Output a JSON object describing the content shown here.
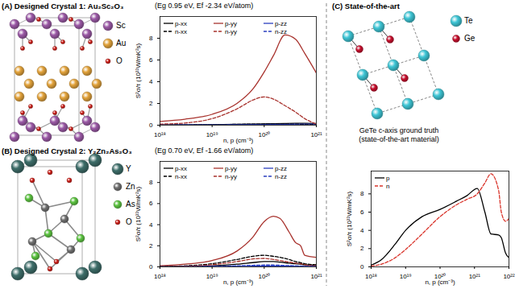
{
  "panels": [
    {
      "heading": "(A) Designed Crystal 1: Au₂Sc₂O₃",
      "atoms": [
        {
          "label": "Sc",
          "color": "#9b59a6"
        },
        {
          "label": "Au",
          "color": "#e3a33b"
        },
        {
          "label": "O",
          "color": "#d0201a"
        }
      ]
    },
    {
      "heading": "(B) Designed Crystal 2: Y₂Zn₂As₂O₃",
      "atoms": [
        {
          "label": "Y",
          "color": "#3e6e6a"
        },
        {
          "label": "Zn",
          "color": "#707070"
        },
        {
          "label": "As",
          "color": "#5cc440"
        },
        {
          "label": "O",
          "color": "#d0201a"
        }
      ]
    },
    {
      "heading": "(C) State-of-the-art",
      "atoms": [
        {
          "label": "Te",
          "color": "#3ec6d6"
        },
        {
          "label": "Ge",
          "color": "#c8102e"
        }
      ],
      "captions": [
        "GeTe c-axis ground truth",
        "(state-of-the-art material)"
      ]
    }
  ],
  "chart_data": [
    {
      "type": "line",
      "title": "(Eg 0.95 eV, Ef -2.34 eV/atom)",
      "x_label": "n, p (cm⁻³)",
      "y_label": "S²σ/τ (10¹¹W/mK²s)",
      "log": "x",
      "legend": "top-left",
      "x": [
        1e+18,
        3e+18,
        1e+19,
        3e+19,
        6e+19,
        1e+20,
        1.5e+20,
        2.5e+20,
        4e+20,
        6e+20,
        1e+21
      ],
      "series": [
        {
          "name": "p-xx",
          "color": "#000000",
          "line_style": "solid",
          "values": [
            0.02,
            0.03,
            0.05,
            0.08,
            0.1,
            0.12,
            0.14,
            0.16,
            0.17,
            0.17,
            0.16
          ]
        },
        {
          "name": "p-yy",
          "color": "#a8322d",
          "line_style": "solid",
          "values": [
            0.35,
            0.55,
            1.0,
            2.0,
            3.3,
            4.9,
            6.4,
            8.3,
            7.9,
            6.6,
            4.8
          ]
        },
        {
          "name": "p-zz",
          "color": "#2b3fbf",
          "line_style": "solid",
          "values": [
            0.01,
            0.02,
            0.03,
            0.05,
            0.06,
            0.07,
            0.08,
            0.09,
            0.1,
            0.1,
            0.1
          ]
        },
        {
          "name": "n-xx",
          "color": "#000000",
          "line_style": "dashed",
          "values": [
            0.02,
            0.03,
            0.05,
            0.08,
            0.1,
            0.11,
            0.12,
            0.12,
            0.1,
            0.08,
            0.05
          ]
        },
        {
          "name": "n-yy",
          "color": "#a8322d",
          "line_style": "dashed",
          "values": [
            0.1,
            0.2,
            0.6,
            1.5,
            2.3,
            2.6,
            2.4,
            1.8,
            1.2,
            0.6,
            0.1
          ]
        },
        {
          "name": "n-zz",
          "color": "#2b3fbf",
          "line_style": "dashed",
          "values": [
            0.01,
            0.02,
            0.03,
            0.04,
            0.05,
            0.05,
            0.05,
            0.05,
            0.04,
            0.03,
            0.02
          ]
        }
      ],
      "xlim": [
        1e+18,
        1e+21
      ],
      "xticks": [
        {
          "value": 1e+18,
          "label": "10¹⁸"
        },
        {
          "value": 1e+19,
          "label": "10¹⁹"
        },
        {
          "value": 1e+20,
          "label": "10²⁰"
        },
        {
          "value": 1e+21,
          "label": "10²¹"
        }
      ],
      "ylim": [
        0,
        10
      ],
      "yticks": [
        0,
        2,
        4,
        6,
        8
      ]
    },
    {
      "type": "line",
      "title": "(Eg 0.70 eV, Ef -1.66 eV/atom)",
      "x_label": "n, p (cm⁻³)",
      "y_label": "S²σ/τ (10¹¹W/mK²s)",
      "log": "x",
      "legend": "top-left",
      "x": [
        1e+18,
        3e+18,
        1e+19,
        3e+19,
        6e+19,
        1e+20,
        1.5e+20,
        2e+20,
        3e+20,
        4e+20,
        5e+20,
        6e+20,
        1e+21
      ],
      "series": [
        {
          "name": "p-xx",
          "color": "#000000",
          "line_style": "solid",
          "values": [
            0.02,
            0.05,
            0.1,
            0.25,
            0.4,
            0.5,
            0.5,
            0.45,
            0.35,
            0.3,
            0.25,
            0.2,
            0.15
          ]
        },
        {
          "name": "p-yy",
          "color": "#a8322d",
          "line_style": "solid",
          "values": [
            0.1,
            0.25,
            0.6,
            1.5,
            2.8,
            4.3,
            4.8,
            4.6,
            3.3,
            2.3,
            2.0,
            1.1,
            0.9
          ]
        },
        {
          "name": "p-zz",
          "color": "#2b3fbf",
          "line_style": "solid",
          "values": [
            0.01,
            0.01,
            0.02,
            0.04,
            0.06,
            0.07,
            0.07,
            0.07,
            0.06,
            0.05,
            0.04,
            0.04,
            0.03
          ]
        },
        {
          "name": "n-xx",
          "color": "#000000",
          "line_style": "dashed",
          "values": [
            0.03,
            0.1,
            0.3,
            0.7,
            1.0,
            1.1,
            1.0,
            0.9,
            0.7,
            0.5,
            0.4,
            0.3,
            0.2
          ]
        },
        {
          "name": "n-yy",
          "color": "#a8322d",
          "line_style": "dashed",
          "values": [
            0.02,
            0.06,
            0.2,
            0.5,
            0.75,
            0.8,
            0.7,
            0.6,
            0.45,
            0.35,
            0.3,
            0.2,
            0.1
          ]
        },
        {
          "name": "n-zz",
          "color": "#2b3fbf",
          "line_style": "dashed",
          "values": [
            0.01,
            0.02,
            0.05,
            0.1,
            0.15,
            0.17,
            0.17,
            0.15,
            0.12,
            0.1,
            0.08,
            0.06,
            0.04
          ]
        }
      ],
      "xlim": [
        1e+18,
        1e+21
      ],
      "xticks": [
        {
          "value": 1e+18,
          "label": "10¹⁸"
        },
        {
          "value": 1e+19,
          "label": "10¹⁹"
        },
        {
          "value": 1e+20,
          "label": "10²⁰"
        },
        {
          "value": 1e+21,
          "label": "10²¹"
        }
      ],
      "ylim": [
        0,
        10
      ],
      "yticks": [
        0,
        2,
        4,
        6,
        8
      ]
    },
    {
      "type": "line",
      "x_label": "n, p (cm⁻³)",
      "y_label": "S²σ/τ (10¹¹W/mK²s)",
      "log": "x",
      "legend": "top-left",
      "x": [
        1e+18,
        2e+18,
        5e+18,
        1e+19,
        3e+19,
        1e+20,
        3e+20,
        6e+20,
        1.2e+21,
        2e+21,
        3e+21,
        5e+21,
        6e+21,
        8e+21,
        1e+22
      ],
      "series": [
        {
          "name": "p",
          "color": "#000000",
          "line_style": "solid",
          "values": [
            0.2,
            0.8,
            2.5,
            4.0,
            5.5,
            6.3,
            7.2,
            7.8,
            8.6,
            6.0,
            3.6,
            3.5,
            3.2,
            1.5,
            1.0
          ]
        },
        {
          "name": "n",
          "color": "#d9342b",
          "line_style": "dashed",
          "values": [
            0.1,
            0.3,
            1.0,
            1.9,
            3.6,
            5.5,
            6.8,
            7.4,
            8.0,
            9.2,
            10.2,
            8.4,
            6.0,
            5.0,
            5.3
          ]
        }
      ],
      "xlim": [
        1e+18,
        1e+22
      ],
      "xticks": [
        {
          "value": 1e+18,
          "label": "10¹⁸"
        },
        {
          "value": 1e+19,
          "label": "10¹⁹"
        },
        {
          "value": 1e+20,
          "label": "10²⁰"
        },
        {
          "value": 1e+21,
          "label": "10²¹"
        },
        {
          "value": 1e+22,
          "label": "10²²"
        }
      ],
      "ylim": [
        0,
        10.5
      ],
      "yticks": [
        0,
        2,
        4,
        6,
        8
      ]
    }
  ]
}
